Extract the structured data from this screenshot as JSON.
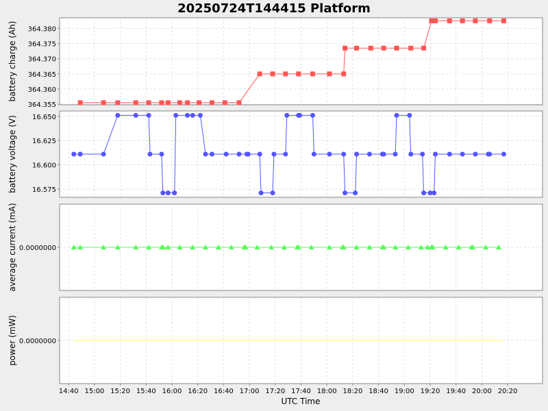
{
  "chart_data": {
    "type": "line",
    "title": "20250724T144415 Platform",
    "xlabel": "UTC Time",
    "x_ticks": [
      "14:40",
      "15:00",
      "15:20",
      "15:40",
      "16:00",
      "16:20",
      "16:40",
      "17:00",
      "17:20",
      "17:40",
      "18:00",
      "18:20",
      "18:40",
      "19:00",
      "19:20",
      "19:40",
      "20:00",
      "20:20"
    ],
    "x_range": [
      "14:33",
      "20:47"
    ],
    "grid": true,
    "panels": [
      {
        "ylabel": "battery charge (Ah)",
        "y_ticks": [
          "364.355",
          "364.360",
          "364.365",
          "364.370",
          "364.375",
          "364.380"
        ],
        "ylim": [
          364.3548,
          364.3835
        ],
        "color": "#ff5555",
        "marker": "square",
        "series": [
          {
            "x": [
              "14:49",
              "15:07",
              "15:18",
              "15:32",
              "15:42",
              "15:52",
              "15:57",
              "16:06",
              "16:12",
              "16:21",
              "16:31",
              "16:41",
              "16:52",
              "17:08",
              "17:18",
              "17:28",
              "17:38",
              "17:49",
              "18:02",
              "18:13",
              "18:14",
              "18:23",
              "18:34",
              "18:44",
              "18:54",
              "19:05",
              "19:15",
              "19:21",
              "19:24",
              "19:35",
              "19:45",
              "19:55",
              "20:06",
              "20:17"
            ],
            "y": [
              364.3555,
              364.3555,
              364.3555,
              364.3555,
              364.3555,
              364.3555,
              364.3555,
              364.3555,
              364.3555,
              364.3555,
              364.3555,
              364.3555,
              364.3555,
              364.365,
              364.365,
              364.365,
              364.365,
              364.365,
              364.365,
              364.365,
              364.3735,
              364.3735,
              364.3735,
              364.3735,
              364.3735,
              364.3735,
              364.3735,
              364.3825,
              364.3825,
              364.3825,
              364.3825,
              364.3825,
              364.3825,
              364.3825
            ]
          }
        ]
      },
      {
        "ylabel": "battery voltage (V)",
        "y_ticks": [
          "16.575",
          "16.600",
          "16.625",
          "16.650"
        ],
        "ylim": [
          16.5665,
          16.6555
        ],
        "color": "#5555ff",
        "marker": "circle",
        "series": [
          {
            "x": [
              "14:44",
              "14:49",
              "15:07",
              "15:18",
              "15:32",
              "15:42",
              "15:43",
              "15:52",
              "15:53",
              "15:57",
              "16:02",
              "16:03",
              "16:12",
              "16:16",
              "16:22",
              "16:26",
              "16:31",
              "16:42",
              "16:52",
              "16:58",
              "16:59",
              "17:08",
              "17:09",
              "17:18",
              "17:19",
              "17:28",
              "17:29",
              "17:38",
              "17:39",
              "17:49",
              "17:50",
              "18:02",
              "18:13",
              "18:14",
              "18:22",
              "18:23",
              "18:33",
              "18:43",
              "18:44",
              "18:53",
              "18:54",
              "19:04",
              "19:05",
              "19:14",
              "19:15",
              "19:20",
              "19:23",
              "19:24",
              "19:35",
              "19:45",
              "19:55",
              "20:05",
              "20:06",
              "20:17"
            ],
            "y": [
              16.611,
              16.611,
              16.611,
              16.651,
              16.651,
              16.651,
              16.611,
              16.611,
              16.571,
              16.571,
              16.571,
              16.651,
              16.651,
              16.651,
              16.651,
              16.611,
              16.611,
              16.611,
              16.611,
              16.611,
              16.611,
              16.611,
              16.571,
              16.571,
              16.611,
              16.611,
              16.651,
              16.651,
              16.651,
              16.651,
              16.611,
              16.611,
              16.611,
              16.571,
              16.571,
              16.611,
              16.611,
              16.611,
              16.611,
              16.611,
              16.651,
              16.651,
              16.611,
              16.611,
              16.571,
              16.571,
              16.571,
              16.611,
              16.611,
              16.611,
              16.611,
              16.611,
              16.611,
              16.611
            ]
          }
        ]
      },
      {
        "ylabel": "average current (mA)",
        "y_ticks": [
          "0.0000000"
        ],
        "ylim": [
          -1,
          1
        ],
        "color": "#55ff55",
        "marker": "triangle",
        "series": [
          {
            "x": [
              "14:44",
              "14:49",
              "15:07",
              "15:18",
              "15:32",
              "15:42",
              "15:52",
              "15:53",
              "15:57",
              "16:06",
              "16:16",
              "16:26",
              "16:36",
              "16:46",
              "16:56",
              "16:57",
              "17:06",
              "17:17",
              "17:27",
              "17:37",
              "17:38",
              "17:48",
              "18:02",
              "18:12",
              "18:13",
              "18:23",
              "18:33",
              "18:43",
              "18:44",
              "18:53",
              "19:03",
              "19:13",
              "19:18",
              "19:21",
              "19:22",
              "19:32",
              "19:42",
              "19:52",
              "19:53",
              "20:03",
              "20:13"
            ],
            "y": [
              0,
              0,
              0,
              0,
              0,
              0,
              0,
              0,
              0,
              0,
              0,
              0,
              0,
              0,
              0,
              0,
              0,
              0,
              0,
              0,
              0,
              0,
              0,
              0,
              0,
              0,
              0,
              0,
              0,
              0,
              0,
              0,
              0,
              0,
              0,
              0,
              0,
              0,
              0,
              0,
              0
            ]
          }
        ]
      },
      {
        "ylabel": "power (mW)",
        "y_ticks": [
          "0.0000000"
        ],
        "ylim": [
          -1,
          1
        ],
        "color": "#ffff55",
        "marker": "none",
        "series": [
          {
            "x": [
              "14:44",
              "20:17"
            ],
            "y": [
              0,
              0
            ]
          }
        ]
      }
    ]
  }
}
